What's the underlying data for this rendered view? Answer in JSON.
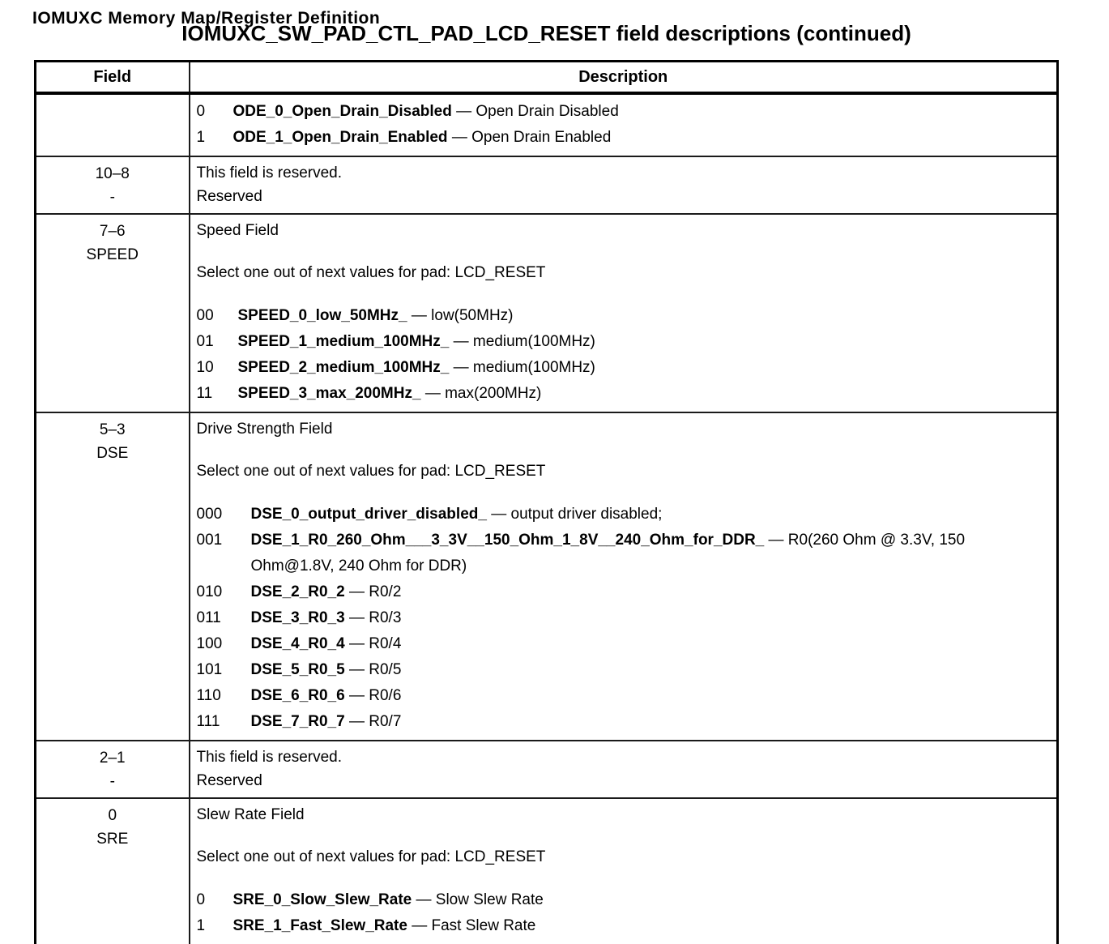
{
  "page": {
    "clipped_running_header": "IOMUXC Memory Map/Register Definition",
    "title": "IOMUXC_SW_PAD_CTL_PAD_LCD_RESET field descriptions (continued)"
  },
  "table": {
    "headers": {
      "field": "Field",
      "description": "Description"
    },
    "rows": [
      {
        "field_bits": "",
        "field_name": "",
        "values": [
          {
            "code": "0",
            "name": "ODE_0_Open_Drain_Disabled",
            "text": "— Open Drain Disabled"
          },
          {
            "code": "1",
            "name": "ODE_1_Open_Drain_Enabled",
            "text": "— Open Drain Enabled"
          }
        ]
      },
      {
        "field_bits": "10–8",
        "field_name": "-",
        "paragraphs": [
          "This field is reserved.",
          "Reserved"
        ]
      },
      {
        "field_bits": "7–6",
        "field_name": "SPEED",
        "intro_title": "Speed Field",
        "intro_select": "Select one out of next values for pad: LCD_RESET",
        "values": [
          {
            "code": "00",
            "name": "SPEED_0_low_50MHz_",
            "text": "— low(50MHz)"
          },
          {
            "code": "01",
            "name": "SPEED_1_medium_100MHz_",
            "text": "— medium(100MHz)"
          },
          {
            "code": "10",
            "name": "SPEED_2_medium_100MHz_",
            "text": "— medium(100MHz)"
          },
          {
            "code": "11",
            "name": "SPEED_3_max_200MHz_",
            "text": "— max(200MHz)"
          }
        ]
      },
      {
        "field_bits": "5–3",
        "field_name": "DSE",
        "intro_title": "Drive Strength Field",
        "intro_select": "Select one out of next values for pad: LCD_RESET",
        "values": [
          {
            "code": "000",
            "name": "DSE_0_output_driver_disabled_",
            "text": "— output driver disabled;"
          },
          {
            "code": "001",
            "name": "DSE_1_R0_260_Ohm___3_3V__150_Ohm_1_8V__240_Ohm_for_DDR_",
            "text": "— R0(260 Ohm @ 3.3V, 150 Ohm@1.8V, 240 Ohm for DDR)"
          },
          {
            "code": "010",
            "name": "DSE_2_R0_2",
            "text": "— R0/2"
          },
          {
            "code": "011",
            "name": "DSE_3_R0_3",
            "text": "— R0/3"
          },
          {
            "code": "100",
            "name": "DSE_4_R0_4",
            "text": "— R0/4"
          },
          {
            "code": "101",
            "name": "DSE_5_R0_5",
            "text": "— R0/5"
          },
          {
            "code": "110",
            "name": "DSE_6_R0_6",
            "text": "— R0/6"
          },
          {
            "code": "111",
            "name": "DSE_7_R0_7",
            "text": "— R0/7"
          }
        ]
      },
      {
        "field_bits": "2–1",
        "field_name": "-",
        "paragraphs": [
          "This field is reserved.",
          "Reserved"
        ]
      },
      {
        "field_bits": "0",
        "field_name": "SRE",
        "intro_title": "Slew Rate Field",
        "intro_select": "Select one out of next values for pad: LCD_RESET",
        "values": [
          {
            "code": "0",
            "name": "SRE_0_Slow_Slew_Rate",
            "text": "— Slow Slew Rate"
          },
          {
            "code": "1",
            "name": "SRE_1_Fast_Slew_Rate",
            "text": "— Fast Slew Rate"
          }
        ]
      }
    ]
  }
}
